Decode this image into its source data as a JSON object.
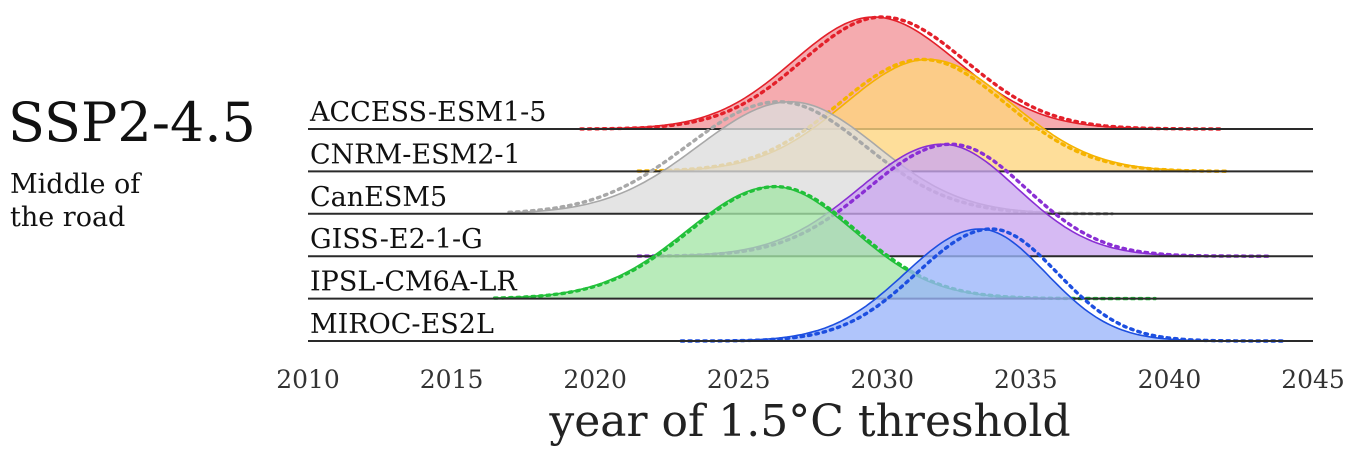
{
  "scenario": {
    "title": "SSP2-4.5",
    "subtitle_lines": [
      "Middle of",
      "the road"
    ]
  },
  "chart_data": {
    "type": "area",
    "title": "",
    "xlabel": "year of 1.5°C threshold",
    "ylabel": "",
    "xlim": [
      2010,
      2045
    ],
    "x_ticks": [
      2010,
      2015,
      2020,
      2025,
      2030,
      2035,
      2040,
      2045
    ],
    "grid": false,
    "legend": "none",
    "series": [
      {
        "name": "ACCESS-ESM1-5",
        "color": "#e3202a",
        "fill": "#f29399",
        "peak_year": 2029.7,
        "spread_left": 2.8,
        "spread_right": 2.9,
        "range": [
          2019.5,
          2041.8
        ],
        "dotted_shift": 0.3
      },
      {
        "name": "CNRM-ESM2-1",
        "color": "#f5b300",
        "fill": "#fed57e",
        "peak_year": 2031.6,
        "spread_left": 2.9,
        "spread_right": 2.9,
        "range": [
          2021.5,
          2042.0
        ],
        "dotted_shift": -0.2
      },
      {
        "name": "CanESM5",
        "color": "#a8a8a8",
        "fill": "#dcdcdc",
        "peak_year": 2026.8,
        "spread_left": 3.2,
        "spread_right": 3.0,
        "range": [
          2017.0,
          2038.0
        ],
        "dotted_shift": -0.4
      },
      {
        "name": "GISS-E2-1-G",
        "color": "#8a2fd4",
        "fill": "#caa7ef",
        "peak_year": 2032.1,
        "spread_left": 2.9,
        "spread_right": 2.6,
        "range": [
          2021.5,
          2043.5
        ],
        "dotted_shift": 0.3
      },
      {
        "name": "IPSL-CM6A-LR",
        "color": "#22c03a",
        "fill": "#a4e6a6",
        "peak_year": 2026.2,
        "spread_left": 3.0,
        "spread_right": 2.8,
        "range": [
          2016.5,
          2039.5
        ],
        "dotted_shift": 0.1
      },
      {
        "name": "MIROC-ES2L",
        "color": "#1d4fe0",
        "fill": "#9ab5fa",
        "peak_year": 2033.4,
        "spread_left": 2.6,
        "spread_right": 2.3,
        "range": [
          2023.0,
          2044.0
        ],
        "dotted_shift": 0.4
      }
    ]
  }
}
